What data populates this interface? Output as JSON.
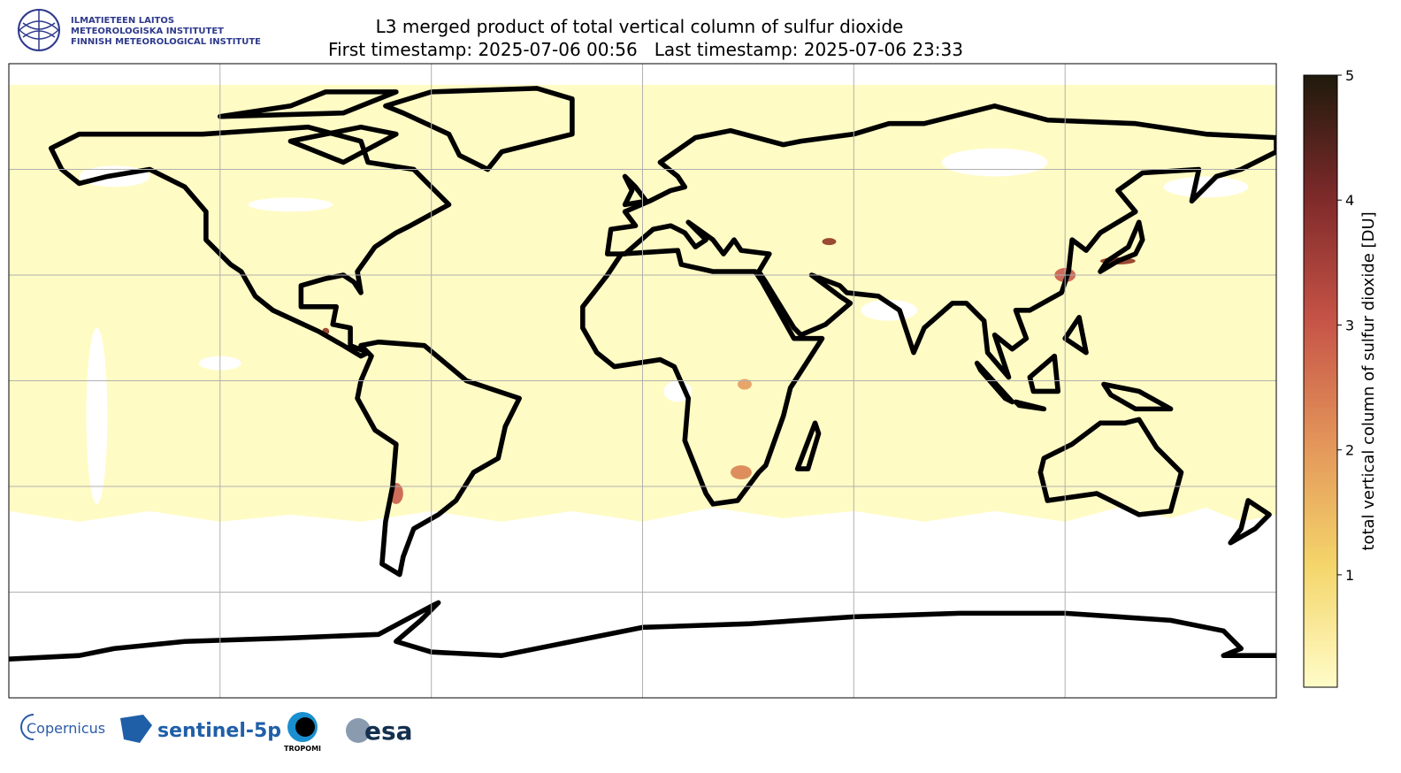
{
  "header": {
    "institute": [
      "ILMATIETEEN LAITOS",
      "METEOROLOGISKA INSTITUTET",
      "FINNISH METEOROLOGICAL INSTITUTE"
    ],
    "title": "L3 merged product of total vertical column of sulfur dioxide",
    "subtitle": "First timestamp: 2025-07-06 00:56   Last timestamp: 2025-07-06 23:33"
  },
  "colorbar": {
    "label": "total vertical column of sulfur dioxide [DU]",
    "range": [
      0.1,
      5
    ],
    "ticks": [
      1,
      2,
      3,
      4,
      5
    ],
    "colors": [
      "#fffcc8",
      "#f4d56a",
      "#e3955a",
      "#c65347",
      "#7e2a2a",
      "#1f1a0c"
    ]
  },
  "footer": {
    "logos": [
      "Copernicus",
      "sentinel-5p",
      "TROPOMI",
      "esa"
    ]
  }
}
